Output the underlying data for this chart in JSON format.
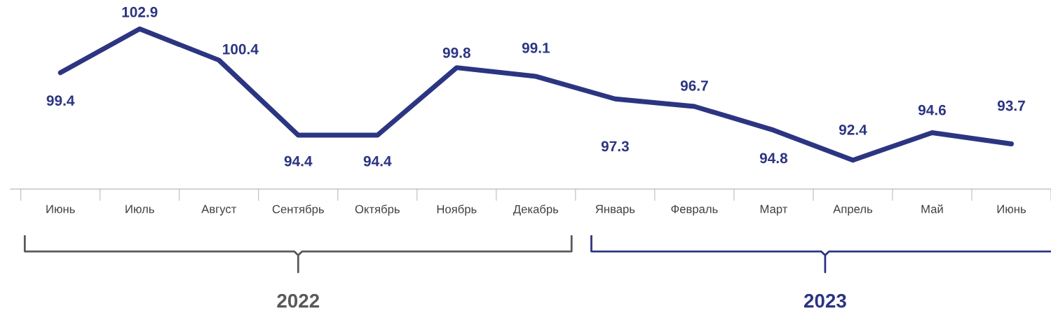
{
  "chart_data": {
    "type": "line",
    "categories": [
      "Июнь",
      "Июль",
      "Август",
      "Сентябрь",
      "Октябрь",
      "Ноябрь",
      "Декабрь",
      "Январь",
      "Февраль",
      "Март",
      "Апрель",
      "Май",
      "Июнь"
    ],
    "series": [
      {
        "color": "#2b3582",
        "values": [
          99.4,
          102.9,
          100.4,
          94.4,
          94.4,
          99.8,
          99.1,
          97.3,
          96.7,
          94.8,
          92.4,
          94.6,
          93.7
        ]
      }
    ],
    "data_labels": true,
    "grid": false,
    "legend": false,
    "tick_labels": "x",
    "annotations": [
      "2022",
      "2023"
    ]
  }
}
